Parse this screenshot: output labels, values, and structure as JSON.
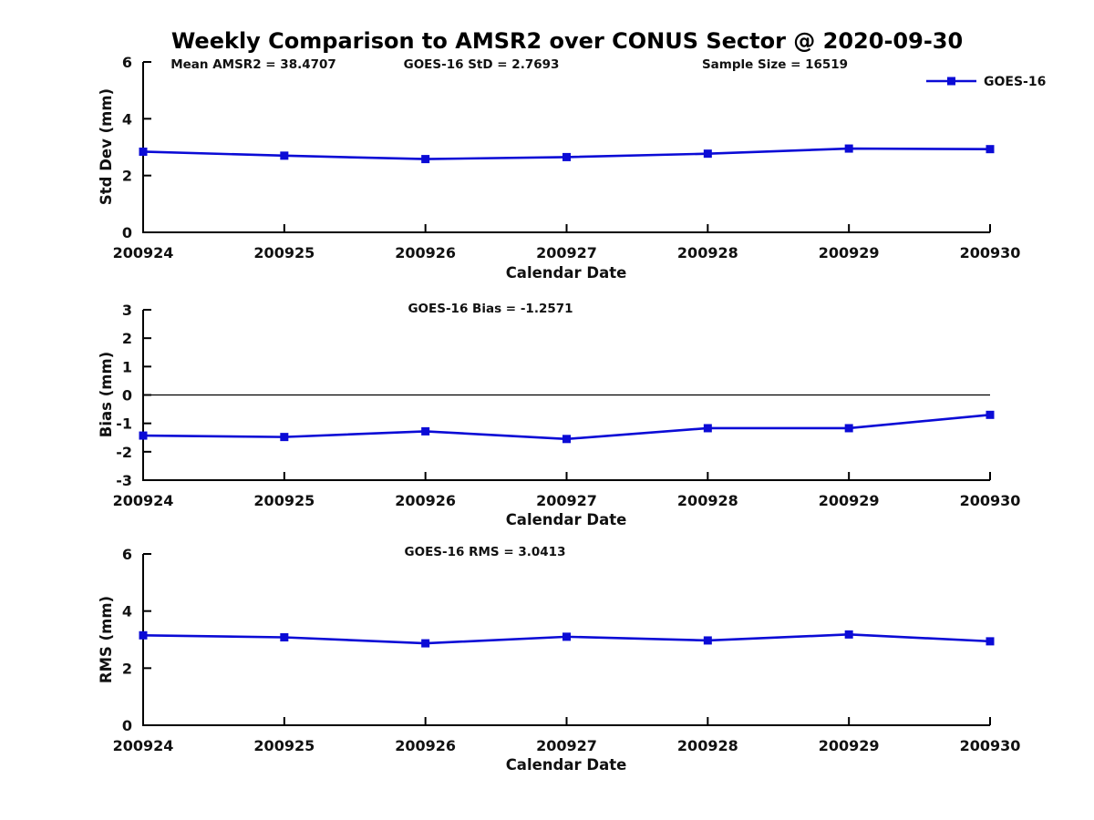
{
  "title": "Weekly Comparison to AMSR2 over CONUS Sector @ 2020-09-30",
  "colors": {
    "line": "#0b0bd6",
    "axis": "#000000",
    "text": "#111111"
  },
  "legend": {
    "label": "GOES-16"
  },
  "xlabel": "Calendar Date",
  "chart_data": [
    {
      "type": "line",
      "name": "stddev",
      "ylabel": "Std Dev (mm)",
      "xlabel": "Calendar Date",
      "annotations": [
        "Mean AMSR2 = 38.4707",
        "GOES-16 StD = 2.7693",
        "Sample Size = 16519"
      ],
      "categories": [
        "200924",
        "200925",
        "200926",
        "200927",
        "200928",
        "200929",
        "200930"
      ],
      "series": [
        {
          "name": "GOES-16",
          "values": [
            2.84,
            2.7,
            2.58,
            2.65,
            2.77,
            2.95,
            2.93
          ]
        }
      ],
      "ylim": [
        0,
        6
      ],
      "yticks": [
        0,
        2,
        4,
        6
      ],
      "grid": false,
      "legend_position": "upper-right",
      "marker": "square"
    },
    {
      "type": "line",
      "name": "bias",
      "ylabel": "Bias (mm)",
      "xlabel": "Calendar Date",
      "annotations": [
        "GOES-16 Bias  = -1.2571"
      ],
      "categories": [
        "200924",
        "200925",
        "200926",
        "200927",
        "200928",
        "200929",
        "200930"
      ],
      "series": [
        {
          "name": "GOES-16",
          "values": [
            -1.43,
            -1.48,
            -1.28,
            -1.55,
            -1.17,
            -1.17,
            -0.7
          ]
        }
      ],
      "ylim": [
        -3,
        3
      ],
      "yticks": [
        -3,
        -2,
        -1,
        0,
        1,
        2,
        3
      ],
      "zero_line": true,
      "grid": false,
      "marker": "square"
    },
    {
      "type": "line",
      "name": "rms",
      "ylabel": "RMS (mm)",
      "xlabel": "Calendar Date",
      "annotations": [
        "GOES-16 RMS = 3.0413"
      ],
      "categories": [
        "200924",
        "200925",
        "200926",
        "200927",
        "200928",
        "200929",
        "200930"
      ],
      "series": [
        {
          "name": "GOES-16",
          "values": [
            3.15,
            3.08,
            2.87,
            3.1,
            2.97,
            3.18,
            2.94
          ]
        }
      ],
      "ylim": [
        0,
        6
      ],
      "yticks": [
        0,
        2,
        4,
        6
      ],
      "grid": false,
      "marker": "square"
    }
  ]
}
